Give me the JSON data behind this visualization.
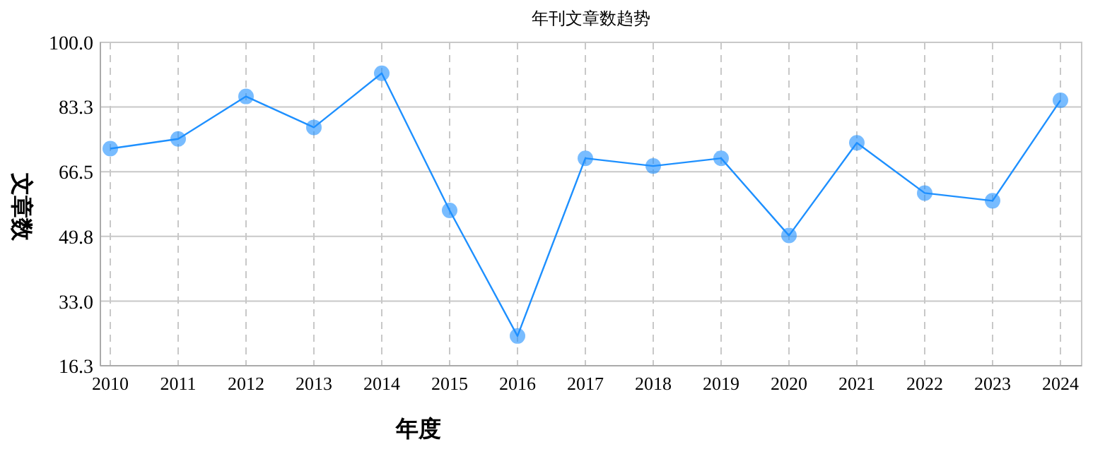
{
  "chart_data": {
    "type": "line",
    "title": "年刊文章数趋势",
    "xlabel": "年度",
    "ylabel": "文章数",
    "categories": [
      "2010",
      "2011",
      "2012",
      "2013",
      "2014",
      "2015",
      "2016",
      "2017",
      "2018",
      "2019",
      "2020",
      "2021",
      "2022",
      "2023",
      "2024"
    ],
    "series": [
      {
        "color": "#1e90ff",
        "values": [
          72.5,
          75,
          86,
          78,
          92,
          56.5,
          24,
          70,
          68,
          70,
          50,
          74,
          61,
          59,
          85
        ]
      }
    ],
    "ylim": [
      16.3,
      100
    ],
    "yticks": [
      {
        "value": 16.3,
        "label": "16.3"
      },
      {
        "value": 33.0,
        "label": "33.0"
      },
      {
        "value": 49.8,
        "label": "49.8"
      },
      {
        "value": 66.5,
        "label": "66.5"
      },
      {
        "value": 83.3,
        "label": "83.3"
      },
      {
        "value": 100.0,
        "label": "100.0"
      }
    ],
    "grid": true,
    "marker": "circle",
    "line_style": "solid"
  }
}
